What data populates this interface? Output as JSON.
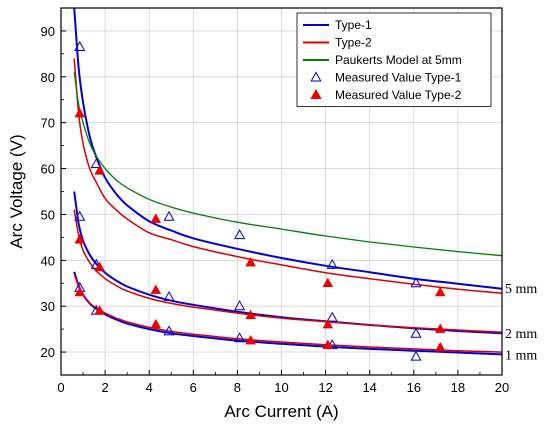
{
  "chart_data": {
    "type": "line",
    "xlabel": "Arc Current (A)",
    "ylabel": "Arc Voltage (V)",
    "xlim": [
      0,
      20
    ],
    "ylim": [
      15,
      95
    ],
    "xticks": [
      0,
      2,
      4,
      6,
      8,
      10,
      12,
      14,
      16,
      18,
      20
    ],
    "yticks": [
      20,
      30,
      40,
      50,
      60,
      70,
      80,
      90
    ],
    "grid": true,
    "legend_position": "top-right",
    "legend": [
      {
        "label": "Type-1",
        "kind": "line",
        "color": "#0000dd"
      },
      {
        "label": "Type-2",
        "kind": "line",
        "color": "#dd0000"
      },
      {
        "label": "Paukerts Model at 5mm",
        "kind": "line",
        "color": "#008000"
      },
      {
        "label": "Measured Value Type-1",
        "kind": "open-triangle",
        "color": "#0000dd"
      },
      {
        "label": "Measured Value Type-2",
        "kind": "filled-triangle",
        "color": "#ee0000"
      }
    ],
    "annotations": [
      {
        "text": "5 mm",
        "y": 34
      },
      {
        "text": "2 mm",
        "y": 24.2
      },
      {
        "text": "1 mm",
        "y": 19.5
      }
    ],
    "curves": [
      {
        "series": "Type-1",
        "gap": "5 mm",
        "color": "#0000dd",
        "width": 2,
        "x": [
          0.6,
          0.8,
          1,
          1.3,
          1.6,
          2,
          2.5,
          3,
          4,
          5,
          6,
          8,
          10,
          12,
          14,
          16,
          18,
          20
        ],
        "y": [
          95,
          82,
          74.5,
          67,
          62.5,
          58,
          54.5,
          52,
          48.5,
          46.5,
          44.8,
          42.5,
          40.5,
          38.8,
          37.4,
          36,
          34.9,
          33.8
        ]
      },
      {
        "series": "Type-2",
        "gap": "5 mm",
        "color": "#dd0000",
        "width": 1.5,
        "x": [
          0.6,
          0.8,
          1,
          1.3,
          1.6,
          2,
          2.5,
          3,
          4,
          5,
          6,
          8,
          10,
          12,
          14,
          16,
          18,
          20
        ],
        "y": [
          84,
          72,
          65.5,
          60,
          57,
          53.5,
          51,
          49,
          46,
          44.5,
          43,
          40.8,
          39,
          37.3,
          36,
          34.8,
          33.7,
          32.8
        ]
      },
      {
        "series": "Paukerts Model at 5mm",
        "gap": "5 mm",
        "color": "#008000",
        "width": 1.3,
        "x": [
          0.6,
          0.8,
          1,
          1.3,
          1.6,
          2,
          2.5,
          3,
          4,
          5,
          6,
          8,
          10,
          12,
          14,
          16,
          18,
          20
        ],
        "y": [
          81,
          74,
          70,
          65.5,
          62.7,
          60,
          57.5,
          55.8,
          53.3,
          51.6,
          50.3,
          48.3,
          46.8,
          45.3,
          44,
          42.9,
          41.9,
          41
        ]
      },
      {
        "series": "Type-1",
        "gap": "2 mm",
        "color": "#0000dd",
        "width": 2,
        "x": [
          0.6,
          0.8,
          1,
          1.3,
          1.6,
          2,
          2.5,
          3,
          4,
          5,
          6,
          8,
          10,
          12,
          14,
          16,
          18,
          20
        ],
        "y": [
          55,
          48,
          44.3,
          41.2,
          39.2,
          37.3,
          35.6,
          34.3,
          32.5,
          31.2,
          30.3,
          28.8,
          27.6,
          26.7,
          25.9,
          25.2,
          24.6,
          24.1
        ]
      },
      {
        "series": "Type-2",
        "gap": "2 mm",
        "color": "#dd0000",
        "width": 1.5,
        "x": [
          0.6,
          0.8,
          1,
          1.3,
          1.6,
          2,
          2.5,
          3,
          4,
          5,
          6,
          8,
          10,
          12,
          14,
          16,
          18,
          20
        ],
        "y": [
          51,
          45.5,
          42.2,
          39.5,
          37.7,
          36,
          34.5,
          33.3,
          31.7,
          30.6,
          29.8,
          28.5,
          27.4,
          26.6,
          25.9,
          25.3,
          24.8,
          24.3
        ]
      },
      {
        "series": "Type-1",
        "gap": "1 mm",
        "color": "#0000dd",
        "width": 2,
        "x": [
          0.6,
          0.8,
          1,
          1.3,
          1.6,
          2,
          2.5,
          3,
          4,
          5,
          6,
          8,
          10,
          12,
          14,
          16,
          18,
          20
        ],
        "y": [
          37.5,
          34.5,
          32.5,
          30.6,
          29.4,
          28.2,
          27.1,
          26.2,
          25,
          24.1,
          23.5,
          22.5,
          21.8,
          21.2,
          20.7,
          20.3,
          19.9,
          19.5
        ]
      },
      {
        "series": "Type-2",
        "gap": "1 mm",
        "color": "#dd0000",
        "width": 1.5,
        "x": [
          0.6,
          0.8,
          1,
          1.3,
          1.6,
          2,
          2.5,
          3,
          4,
          5,
          6,
          8,
          10,
          12,
          14,
          16,
          18,
          20
        ],
        "y": [
          37,
          34.3,
          32.5,
          30.7,
          29.6,
          28.5,
          27.4,
          26.6,
          25.4,
          24.5,
          23.9,
          22.9,
          22.2,
          21.6,
          21.1,
          20.7,
          20.3,
          20
        ]
      }
    ],
    "markers": [
      {
        "series": "Measured Value Type-1",
        "style": "open",
        "color": "#0000dd",
        "x": [
          0.85,
          1.6,
          4.9,
          8.1,
          12.3,
          16.1,
          0.85,
          1.6,
          4.9,
          8.1,
          12.3,
          16.1,
          0.85,
          1.6,
          4.9,
          8.1,
          12.3,
          16.1
        ],
        "y": [
          86.5,
          61,
          49.5,
          45.5,
          39,
          35,
          49.5,
          39,
          32,
          30,
          27.5,
          24,
          34,
          29,
          24.5,
          23,
          21.5,
          19
        ]
      },
      {
        "series": "Measured Value Type-2",
        "style": "filled",
        "color": "#ee0000",
        "x": [
          0.85,
          1.75,
          4.3,
          8.6,
          12.1,
          17.2,
          0.85,
          1.75,
          4.3,
          8.6,
          12.1,
          17.2,
          0.85,
          1.75,
          4.3,
          8.6,
          12.1,
          17.2
        ],
        "y": [
          72,
          59.5,
          49,
          39.5,
          35,
          33,
          44.5,
          38.5,
          33.5,
          28,
          26,
          25,
          33,
          29,
          26,
          22.5,
          21.5,
          21
        ]
      }
    ]
  }
}
